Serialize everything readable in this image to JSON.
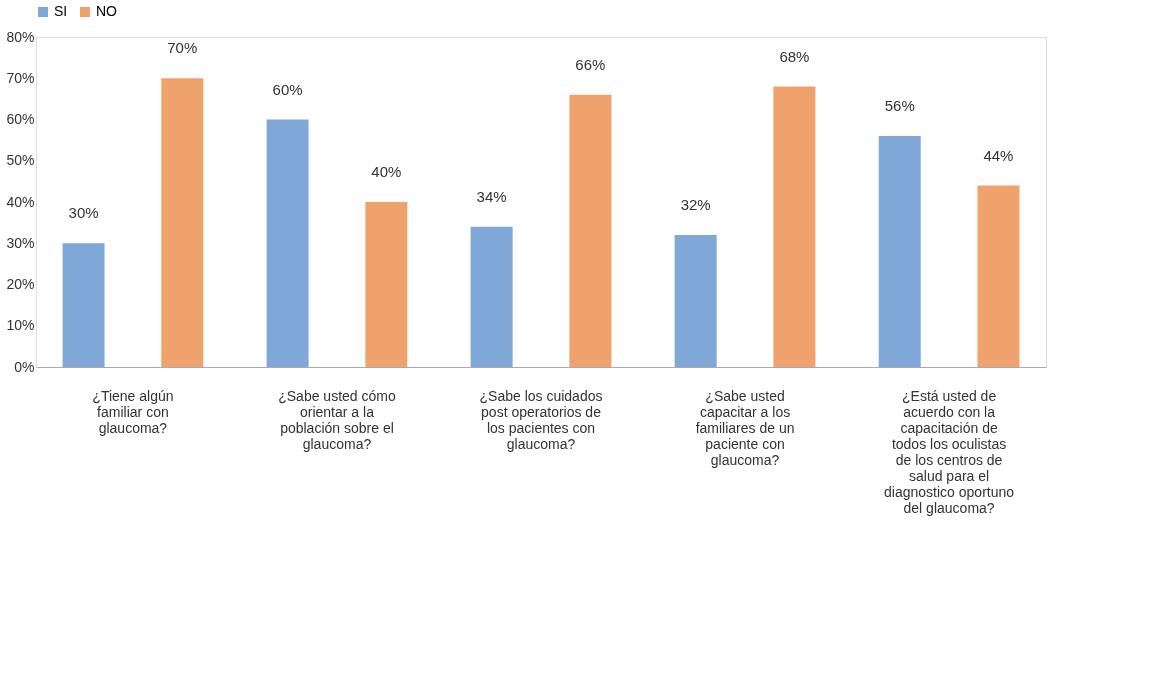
{
  "chart_data": {
    "type": "bar",
    "categories": [
      "¿Tiene algún familiar con glaucoma?",
      "¿Sabe usted cómo orientar a la población sobre el glaucoma?",
      "¿Sabe los cuidados post operatorios de los pacientes con glaucoma?",
      "¿Sabe usted capacitar a los familiares de un paciente con glaucoma?",
      "¿Está usted de acuerdo con la capacitación de todos los oculistas de los centros de salud para el diagnostico oportuno del glaucoma?"
    ],
    "series": [
      {
        "name": "SI",
        "color": "#7fa7d8",
        "values": [
          30,
          60,
          34,
          32,
          56
        ],
        "value_labels": [
          "30%",
          "60%",
          "34%",
          "32%",
          "56%"
        ]
      },
      {
        "name": "NO",
        "color": "#f0a26c",
        "values": [
          70,
          40,
          66,
          68,
          44
        ],
        "value_labels": [
          "70%",
          "40%",
          "66%",
          "68%",
          "44%"
        ]
      }
    ],
    "ylim": [
      0,
      80
    ],
    "yticks": [
      {
        "value": 0,
        "label": "0%"
      },
      {
        "value": 10,
        "label": "10%"
      },
      {
        "value": 20,
        "label": "20%"
      },
      {
        "value": 30,
        "label": "30%"
      },
      {
        "value": 40,
        "label": "40%"
      },
      {
        "value": 50,
        "label": "50%"
      },
      {
        "value": 60,
        "label": "60%"
      },
      {
        "value": 70,
        "label": "70%"
      },
      {
        "value": 80,
        "label": "80%"
      }
    ],
    "grid": false,
    "legend": "top"
  }
}
